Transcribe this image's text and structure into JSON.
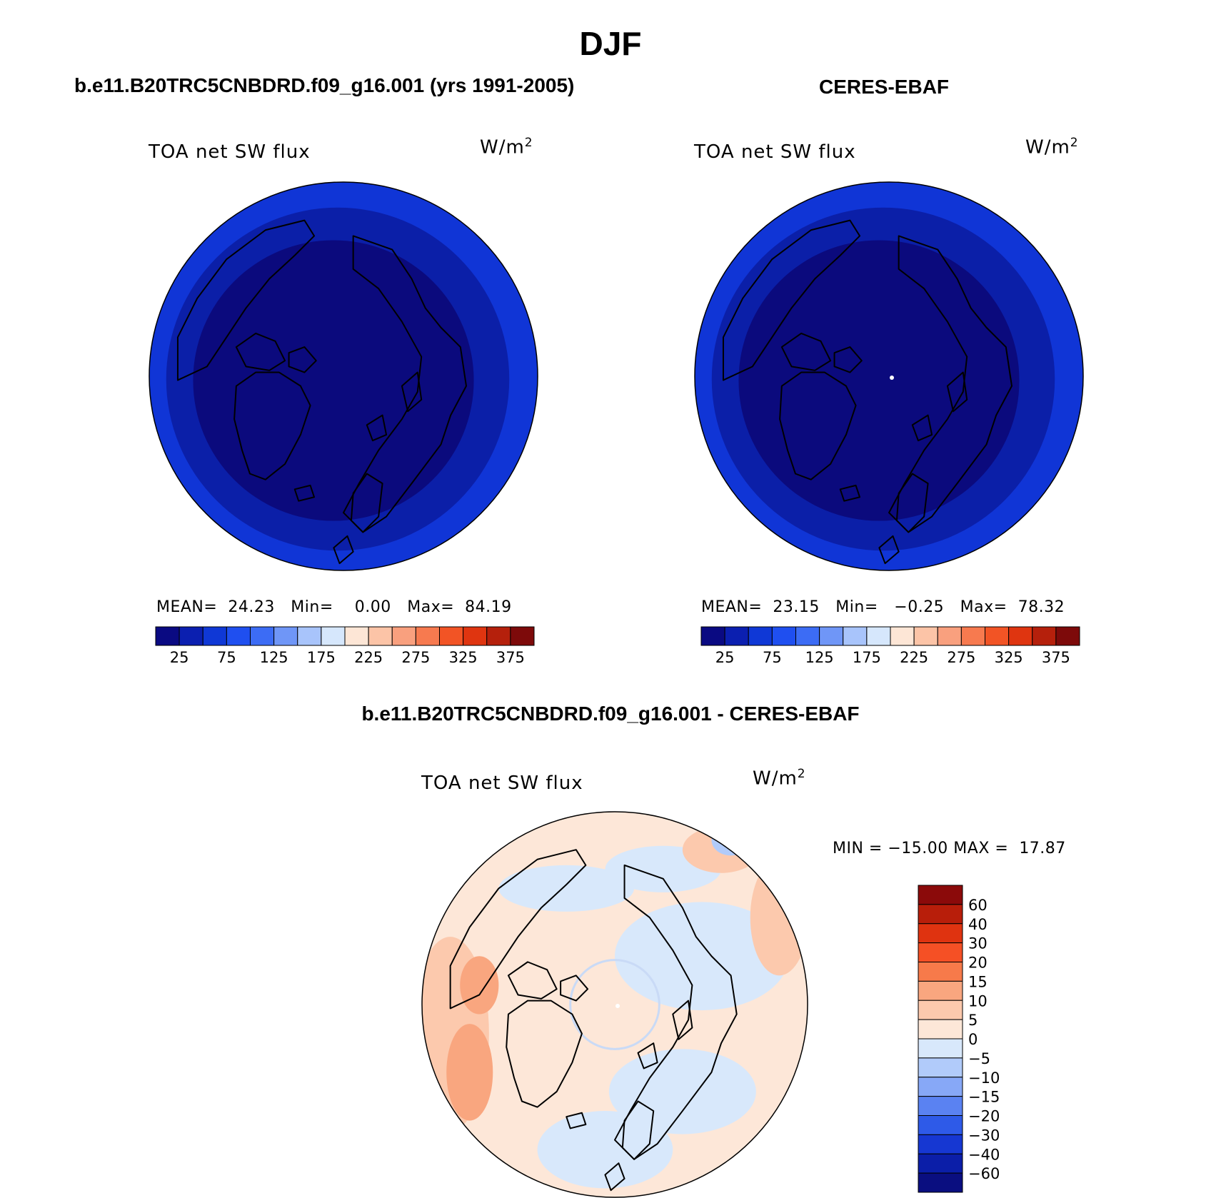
{
  "figure": {
    "title": "DJF"
  },
  "chart_data": [
    {
      "type": "heatmap",
      "id": "model",
      "title": "b.e11.B20TRC5CNBDRD.f09_g16.001 (yrs 1991-2005)",
      "variable": "TOA net SW flux",
      "units": "W/m",
      "units_sup": "2",
      "projection": "polar-stereographic north",
      "stats": {
        "mean_label": "MEAN=",
        "mean": "24.23",
        "min_label": "Min=",
        "min": "0.00",
        "max_label": "Max=",
        "max": "84.19"
      },
      "colorbar": {
        "orientation": "horizontal",
        "tick_labels": [
          "25",
          "75",
          "125",
          "175",
          "225",
          "275",
          "325",
          "375"
        ],
        "colors": [
          "#0a0a82",
          "#0b1fb0",
          "#0f38d6",
          "#1f4ff0",
          "#3c6cf5",
          "#6f96f7",
          "#a8c4fb",
          "#d6e7fc",
          "#fde6d6",
          "#fcc4a7",
          "#f9a07e",
          "#f77a4f",
          "#f25425",
          "#df3510",
          "#b5200c",
          "#7d0a0a"
        ]
      },
      "field_colors": [
        "#0b0a7d",
        "#0b1fa8",
        "#1035d6"
      ]
    },
    {
      "type": "heatmap",
      "id": "obs",
      "title": "CERES-EBAF",
      "variable": "TOA net SW flux",
      "units": "W/m",
      "units_sup": "2",
      "projection": "polar-stereographic north",
      "stats": {
        "mean_label": "MEAN=",
        "mean": "23.15",
        "min_label": "Min=",
        "min": "−0.25",
        "max_label": "Max=",
        "max": "78.32"
      },
      "colorbar": {
        "orientation": "horizontal",
        "tick_labels": [
          "25",
          "75",
          "125",
          "175",
          "225",
          "275",
          "325",
          "375"
        ],
        "colors": [
          "#0a0a82",
          "#0b1fb0",
          "#0f38d6",
          "#1f4ff0",
          "#3c6cf5",
          "#6f96f7",
          "#a8c4fb",
          "#d6e7fc",
          "#fde6d6",
          "#fcc4a7",
          "#f9a07e",
          "#f77a4f",
          "#f25425",
          "#df3510",
          "#b5200c",
          "#7d0a0a"
        ]
      },
      "field_colors": [
        "#0b0a7d",
        "#0b1fa8",
        "#1035d6"
      ]
    },
    {
      "type": "heatmap",
      "id": "diff",
      "title": "b.e11.B20TRC5CNBDRD.f09_g16.001 - CERES-EBAF",
      "variable": "TOA net SW flux",
      "units": "W/m",
      "units_sup": "2",
      "projection": "polar-stereographic north",
      "stats": {
        "min_label": "MIN =",
        "min": "−15.00",
        "max_label": "MAX =",
        "max": "17.87"
      },
      "colorbar": {
        "orientation": "vertical",
        "tick_labels": [
          "60",
          "40",
          "30",
          "20",
          "15",
          "10",
          "5",
          "0",
          "−5",
          "−10",
          "−15",
          "−20",
          "−30",
          "−40",
          "−60"
        ],
        "colors": [
          "#8b0a0a",
          "#b81e0a",
          "#df3310",
          "#f55025",
          "#f77a4a",
          "#f9a67f",
          "#fcc9ad",
          "#fde7d8",
          "#d8e8fb",
          "#b1cbfa",
          "#87a8f7",
          "#5a82f2",
          "#2e5ae8",
          "#1637d2",
          "#0b1ea8",
          "#0a0e80"
        ]
      },
      "field_colors": [
        "#fde7d8",
        "#d8e8fb",
        "#fcc9ad",
        "#f9a67f",
        "#b1cbfa"
      ]
    }
  ]
}
